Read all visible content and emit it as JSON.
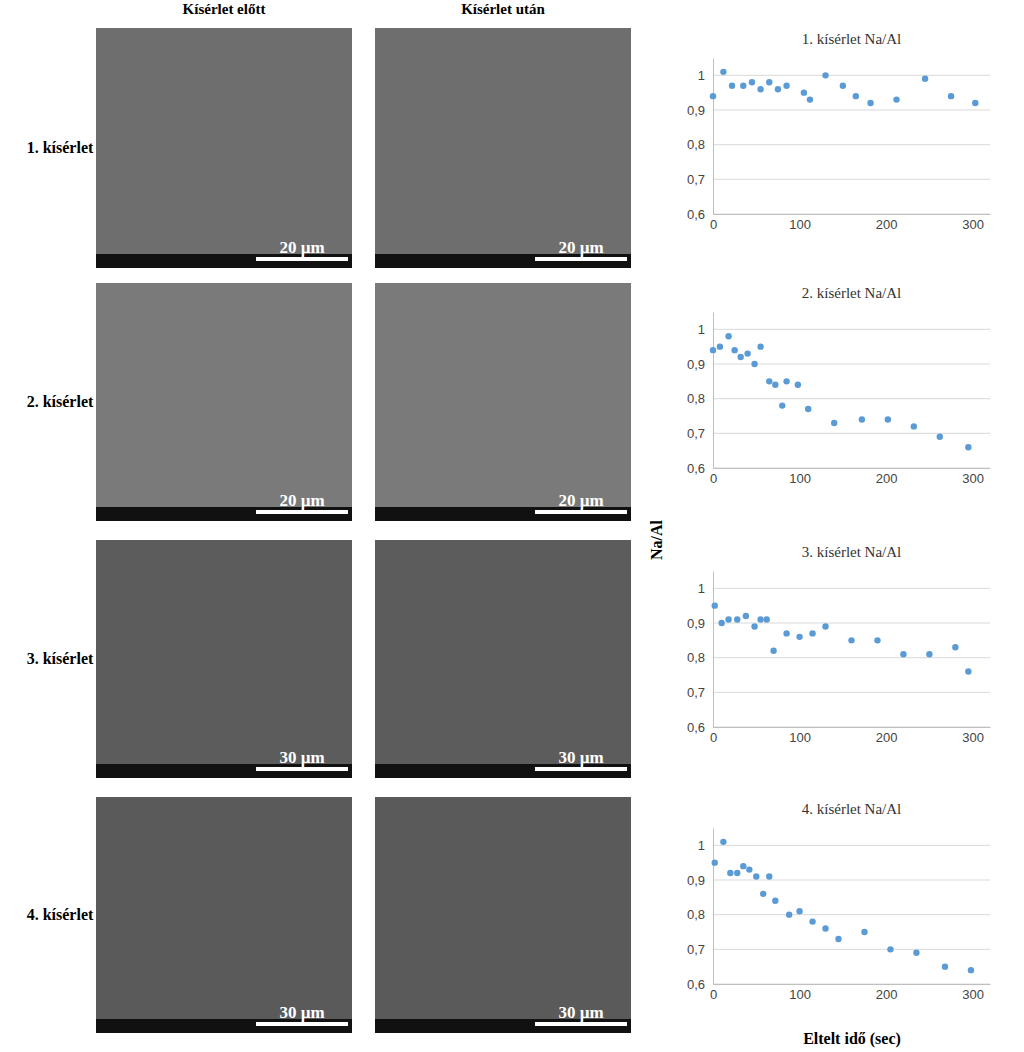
{
  "figure": {
    "columns": [
      "Kísérlet előtt",
      "Kísérlet után"
    ],
    "rows": [
      "1. kísérlet",
      "2. kísérlet",
      "3. kísérlet",
      "4. kísérlet"
    ],
    "scale_bars": [
      "20 µm",
      "20 µm",
      "30 µm",
      "30 µm"
    ],
    "ylabel": "Na/Al",
    "xlabel": "Eltelt idő (sec)"
  },
  "chart_data": [
    {
      "type": "scatter",
      "title": "1. kísérlet Na/Al",
      "color": "#5b9bd5",
      "marker": "circle",
      "grid": true,
      "x": [
        0,
        12,
        22,
        35,
        45,
        55,
        65,
        75,
        85,
        105,
        112,
        130,
        150,
        165,
        182,
        212,
        245,
        275,
        303
      ],
      "values": [
        0.94,
        1.01,
        0.97,
        0.97,
        0.98,
        0.96,
        0.98,
        0.96,
        0.97,
        0.95,
        0.93,
        1.0,
        0.97,
        0.94,
        0.92,
        0.93,
        0.99,
        0.94,
        0.92
      ],
      "xlim": [
        0,
        320
      ],
      "xticks": [
        0,
        100,
        200,
        300
      ],
      "ylim": [
        0.6,
        1.05
      ],
      "yticks": [
        {
          "value": 0.6,
          "label": "0,6"
        },
        {
          "value": 0.7,
          "label": "0,7"
        },
        {
          "value": 0.8,
          "label": "0,8"
        },
        {
          "value": 0.9,
          "label": "0,9"
        },
        1
      ]
    },
    {
      "type": "scatter",
      "title": "2. kísérlet Na/Al",
      "color": "#5b9bd5",
      "marker": "circle",
      "grid": true,
      "x": [
        0,
        8,
        18,
        25,
        32,
        40,
        48,
        55,
        65,
        72,
        80,
        85,
        98,
        110,
        140,
        172,
        202,
        232,
        262,
        295
      ],
      "values": [
        0.94,
        0.95,
        0.98,
        0.94,
        0.92,
        0.93,
        0.9,
        0.95,
        0.85,
        0.84,
        0.78,
        0.85,
        0.84,
        0.77,
        0.73,
        0.74,
        0.74,
        0.72,
        0.69,
        0.66
      ],
      "xlim": [
        0,
        320
      ],
      "xticks": [
        0,
        100,
        200,
        300
      ],
      "ylim": [
        0.6,
        1.05
      ],
      "yticks": [
        {
          "value": 0.6,
          "label": "0,6"
        },
        {
          "value": 0.7,
          "label": "0,7"
        },
        {
          "value": 0.8,
          "label": "0,8"
        },
        {
          "value": 0.9,
          "label": "0,9"
        },
        1
      ]
    },
    {
      "type": "scatter",
      "title": "3. kísérlet Na/Al",
      "color": "#5b9bd5",
      "marker": "circle",
      "grid": true,
      "x": [
        2,
        10,
        18,
        28,
        38,
        48,
        55,
        62,
        70,
        85,
        100,
        115,
        130,
        160,
        190,
        220,
        250,
        280,
        295
      ],
      "values": [
        0.95,
        0.9,
        0.91,
        0.91,
        0.92,
        0.89,
        0.91,
        0.91,
        0.82,
        0.87,
        0.86,
        0.87,
        0.89,
        0.85,
        0.85,
        0.81,
        0.81,
        0.83,
        0.76
      ],
      "xlim": [
        0,
        320
      ],
      "xticks": [
        0,
        100,
        200,
        300
      ],
      "ylim": [
        0.6,
        1.05
      ],
      "yticks": [
        {
          "value": 0.6,
          "label": "0,6"
        },
        {
          "value": 0.7,
          "label": "0,7"
        },
        {
          "value": 0.8,
          "label": "0,8"
        },
        {
          "value": 0.9,
          "label": "0,9"
        },
        1
      ]
    },
    {
      "type": "scatter",
      "title": "4. kísérlet Na/Al",
      "color": "#5b9bd5",
      "marker": "circle",
      "grid": true,
      "x": [
        2,
        12,
        20,
        28,
        35,
        42,
        50,
        58,
        65,
        72,
        88,
        100,
        115,
        130,
        145,
        175,
        205,
        235,
        268,
        298
      ],
      "values": [
        0.95,
        1.01,
        0.92,
        0.92,
        0.94,
        0.93,
        0.91,
        0.86,
        0.91,
        0.84,
        0.8,
        0.81,
        0.78,
        0.76,
        0.73,
        0.75,
        0.7,
        0.69,
        0.65,
        0.64
      ],
      "xlim": [
        0,
        320
      ],
      "xticks": [
        0,
        100,
        200,
        300
      ],
      "ylim": [
        0.6,
        1.05
      ],
      "yticks": [
        {
          "value": 0.6,
          "label": "0,6"
        },
        {
          "value": 0.7,
          "label": "0,7"
        },
        {
          "value": 0.8,
          "label": "0,8"
        },
        {
          "value": 0.9,
          "label": "0,9"
        },
        1
      ]
    }
  ]
}
